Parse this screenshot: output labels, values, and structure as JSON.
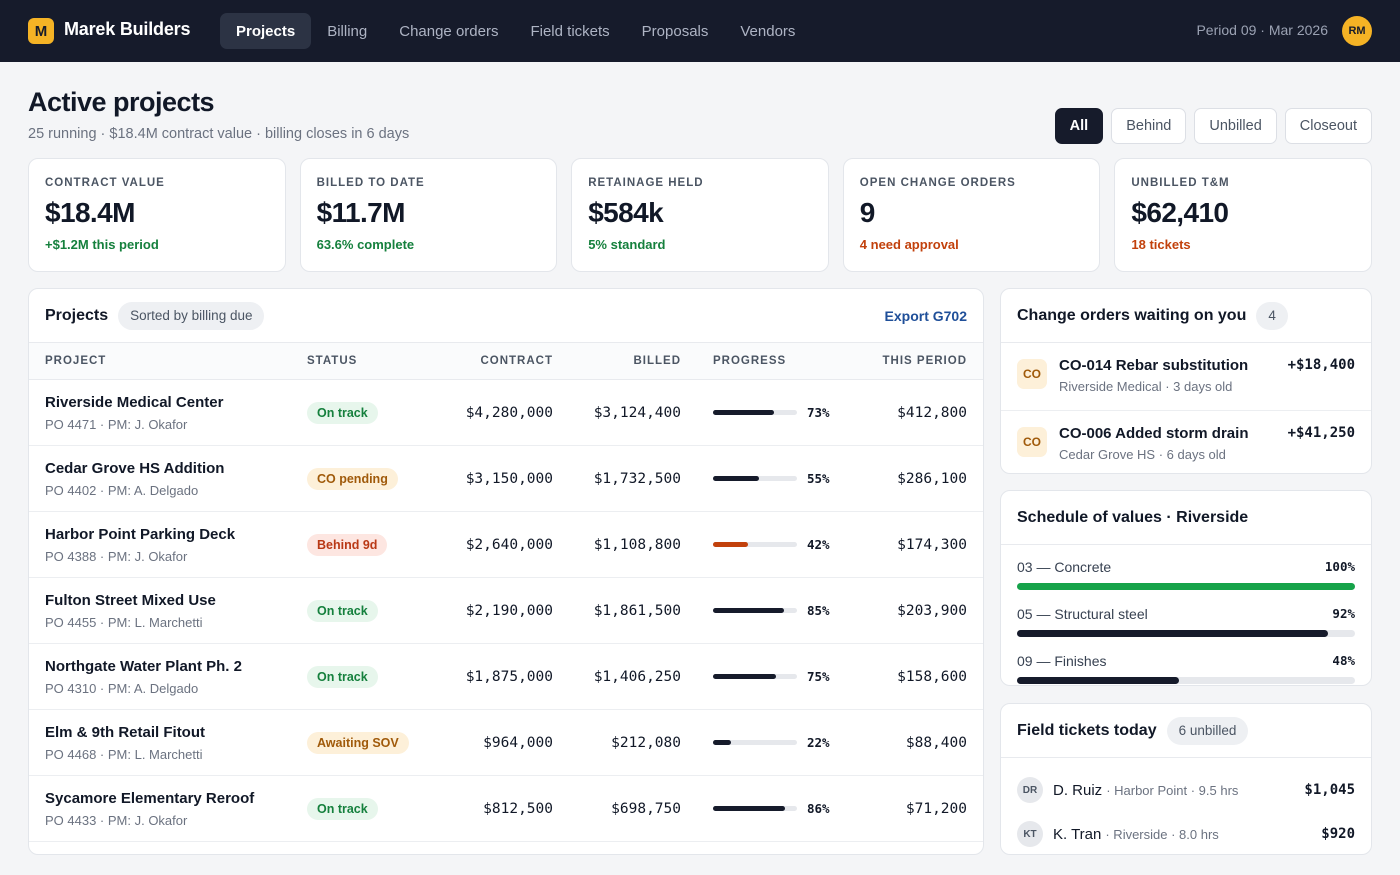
{
  "app": {
    "logo_letter": "M",
    "brand": "Marek Builders",
    "nav": [
      "Projects",
      "Billing",
      "Change orders",
      "Field tickets",
      "Proposals",
      "Vendors"
    ],
    "active_nav": "Projects",
    "period": "Period 09 · Mar 2026",
    "user_initials": "RM"
  },
  "header": {
    "title": "Active projects",
    "subtitle": "25 running · $18.4M contract value · billing closes in 6 days",
    "filters": [
      "All",
      "Behind",
      "Unbilled",
      "Closeout"
    ],
    "active_filter": "All"
  },
  "kpis": [
    {
      "label": "CONTRACT VALUE",
      "value": "$18.4M",
      "delta": "+$1.2M this period",
      "color": "#15803d"
    },
    {
      "label": "BILLED TO DATE",
      "value": "$11.7M",
      "delta": "63.6% complete",
      "color": "#15803d"
    },
    {
      "label": "RETAINAGE HELD",
      "value": "$584k",
      "delta": "5% standard",
      "color": "#15803d"
    },
    {
      "label": "OPEN CHANGE ORDERS",
      "value": "9",
      "delta": "4 need approval",
      "color": "#c2410c"
    },
    {
      "label": "UNBILLED T&M",
      "value": "$62,410",
      "delta": "18 tickets",
      "color": "#c2410c"
    }
  ],
  "projects": {
    "title": "Projects",
    "sort_pill": "Sorted by billing due",
    "export_label": "Export G702",
    "columns": [
      "PROJECT",
      "STATUS",
      "CONTRACT",
      "BILLED",
      "PROGRESS",
      "THIS PERIOD"
    ],
    "rows": [
      {
        "name": "Riverside Medical Center",
        "meta": "PO 4471 · PM: J. Okafor",
        "status": "On track",
        "status_kind": "ok",
        "contract": "$4,280,000",
        "billed": "$3,124,400",
        "progress": 73,
        "progress_label": "73%",
        "period": "$412,800"
      },
      {
        "name": "Cedar Grove HS Addition",
        "meta": "PO 4402 · PM: A. Delgado",
        "status": "CO pending",
        "status_kind": "warn",
        "contract": "$3,150,000",
        "billed": "$1,732,500",
        "progress": 55,
        "progress_label": "55%",
        "period": "$286,100"
      },
      {
        "name": "Harbor Point Parking Deck",
        "meta": "PO 4388 · PM: J. Okafor",
        "status": "Behind 9d",
        "status_kind": "bad",
        "contract": "$2,640,000",
        "billed": "$1,108,800",
        "progress": 42,
        "progress_label": "42%",
        "period": "$174,300"
      },
      {
        "name": "Fulton Street Mixed Use",
        "meta": "PO 4455 · PM: L. Marchetti",
        "status": "On track",
        "status_kind": "ok",
        "contract": "$2,190,000",
        "billed": "$1,861,500",
        "progress": 85,
        "progress_label": "85%",
        "period": "$203,900"
      },
      {
        "name": "Northgate Water Plant Ph. 2",
        "meta": "PO 4310 · PM: A. Delgado",
        "status": "On track",
        "status_kind": "ok",
        "contract": "$1,875,000",
        "billed": "$1,406,250",
        "progress": 75,
        "progress_label": "75%",
        "period": "$158,600"
      },
      {
        "name": "Elm & 9th Retail Fitout",
        "meta": "PO 4468 · PM: L. Marchetti",
        "status": "Awaiting SOV",
        "status_kind": "warn",
        "contract": "$964,000",
        "billed": "$212,080",
        "progress": 22,
        "progress_label": "22%",
        "period": "$88,400"
      },
      {
        "name": "Sycamore Elementary Reroof",
        "meta": "PO 4433 · PM: J. Okafor",
        "status": "On track",
        "status_kind": "ok",
        "contract": "$812,500",
        "billed": "$698,750",
        "progress": 86,
        "progress_label": "86%",
        "period": "$71,200"
      }
    ]
  },
  "change_orders": {
    "title": "Change orders waiting on you",
    "count": "4",
    "icon_text": "CO",
    "items": [
      {
        "title": "CO-014 Rebar substitution",
        "meta": "Riverside Medical · 3 days old",
        "amount": "+$18,400"
      },
      {
        "title": "CO-006 Added storm drain",
        "meta": "Cedar Grove HS · 6 days old",
        "amount": "+$41,250"
      }
    ]
  },
  "sov": {
    "title": "Schedule of values · Riverside",
    "items": [
      {
        "label": "03 — Concrete",
        "pct_label": "100%",
        "pct": 100,
        "color": "#16a34a"
      },
      {
        "label": "05 — Structural steel",
        "pct_label": "92%",
        "pct": 92,
        "color": "#161b2b"
      },
      {
        "label": "09 — Finishes",
        "pct_label": "48%",
        "pct": 48,
        "color": "#161b2b"
      }
    ]
  },
  "field_tickets": {
    "title": "Field tickets today",
    "pill": "6 unbilled",
    "items": [
      {
        "initials": "DR",
        "name": "D. Ruiz",
        "meta": "· Harbor Point · 9.5 hrs",
        "amount": "$1,045"
      },
      {
        "initials": "KT",
        "name": "K. Tran",
        "meta": "· Riverside · 8.0 hrs",
        "amount": "$920"
      }
    ]
  },
  "colors": {
    "ok_bg": "#e7f6ec",
    "ok_fg": "#15803d",
    "warn_bg": "#fdf0d9",
    "warn_fg": "#a05a0a",
    "bad_bg": "#fde6e1",
    "bad_fg": "#b93815",
    "bar_dark": "#161b2b",
    "bar_bad": "#c2410c"
  }
}
